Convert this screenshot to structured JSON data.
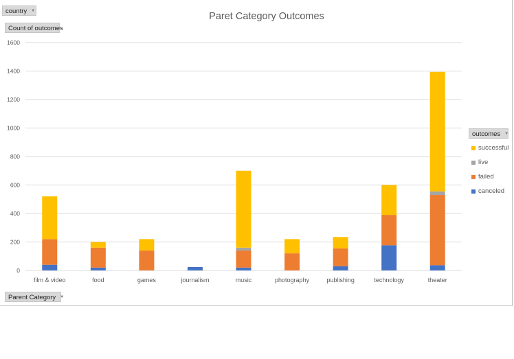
{
  "filter": {
    "label": "country"
  },
  "value_field": {
    "label": "Count of outcomes"
  },
  "axis_field": {
    "label": "Parent Category"
  },
  "legend_field": {
    "label": "outcomes"
  },
  "colors": {
    "canceled": "#4472c4",
    "failed": "#ed7d31",
    "live": "#a5a5a5",
    "successful": "#ffc000"
  },
  "chart_data": {
    "type": "bar",
    "stacked": true,
    "title": "Paret Category Outcomes",
    "xlabel": "",
    "ylabel": "",
    "ylim": [
      0,
      1600
    ],
    "yticks": [
      0,
      200,
      400,
      600,
      800,
      1000,
      1200,
      1400,
      1600
    ],
    "grid": true,
    "legend_position": "right",
    "categories": [
      "film & video",
      "food",
      "games",
      "journalism",
      "music",
      "photography",
      "publishing",
      "technology",
      "theater"
    ],
    "series": [
      {
        "name": "canceled",
        "values": [
          40,
          20,
          0,
          24,
          20,
          0,
          30,
          177,
          37
        ]
      },
      {
        "name": "failed",
        "values": [
          180,
          140,
          140,
          0,
          120,
          120,
          125,
          213,
          493
        ]
      },
      {
        "name": "live",
        "values": [
          0,
          0,
          0,
          0,
          20,
          0,
          0,
          0,
          25
        ]
      },
      {
        "name": "successful",
        "values": [
          300,
          40,
          80,
          0,
          540,
          100,
          80,
          210,
          839
        ]
      }
    ]
  }
}
